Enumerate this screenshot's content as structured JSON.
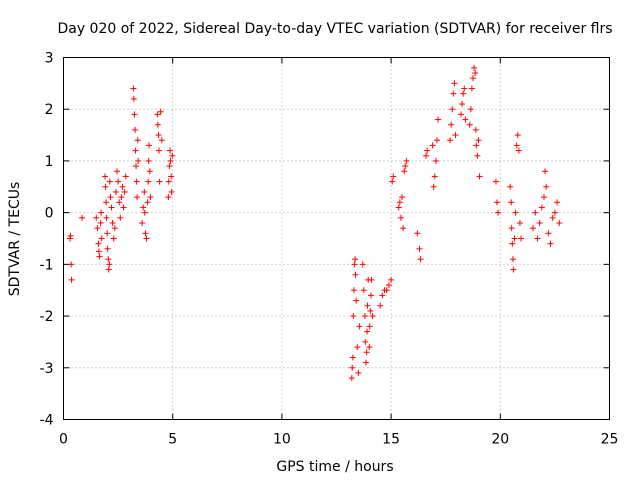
{
  "chart_data": {
    "type": "scatter",
    "title": "Day 020 of 2022, Sidereal Day-to-day VTEC variation (SDTVAR) for receiver flrs",
    "xlabel": "GPS time / hours",
    "ylabel": "SDTVAR / TECUs",
    "xlim": [
      0,
      25
    ],
    "ylim": [
      -4,
      3
    ],
    "xticks": [
      0,
      5,
      10,
      15,
      20,
      25
    ],
    "yticks": [
      -4,
      -3,
      -2,
      -1,
      0,
      1,
      2,
      3
    ],
    "xtick_labels": [
      "0",
      "5",
      "10",
      "15",
      "20",
      "25"
    ],
    "ytick_labels": [
      "-4",
      "-3",
      "-2",
      "-1",
      "0",
      "1",
      "2",
      "3"
    ],
    "grid": true,
    "marker": "+",
    "series": [
      {
        "name": "SDTVAR",
        "color": "#ff0000",
        "points": [
          [
            0.3,
            -0.5
          ],
          [
            0.32,
            -0.45
          ],
          [
            0.35,
            -1.0
          ],
          [
            0.37,
            -1.3
          ],
          [
            0.85,
            -0.1
          ],
          [
            1.5,
            -0.1
          ],
          [
            1.55,
            -0.3
          ],
          [
            1.6,
            -0.6
          ],
          [
            1.62,
            -0.75
          ],
          [
            1.65,
            -0.85
          ],
          [
            1.7,
            -0.2
          ],
          [
            1.72,
            0.0
          ],
          [
            1.75,
            -0.5
          ],
          [
            1.9,
            0.7
          ],
          [
            1.92,
            0.5
          ],
          [
            1.95,
            0.2
          ],
          [
            1.97,
            -0.1
          ],
          [
            2.0,
            -0.4
          ],
          [
            2.02,
            -0.7
          ],
          [
            2.05,
            -0.9
          ],
          [
            2.07,
            -1.1
          ],
          [
            2.1,
            -1.0
          ],
          [
            2.12,
            0.6
          ],
          [
            2.15,
            0.3
          ],
          [
            2.2,
            0.1
          ],
          [
            2.25,
            -0.2
          ],
          [
            2.3,
            -0.5
          ],
          [
            2.35,
            -0.3
          ],
          [
            2.4,
            0.4
          ],
          [
            2.45,
            0.8
          ],
          [
            2.5,
            0.6
          ],
          [
            2.55,
            0.2
          ],
          [
            2.6,
            -0.1
          ],
          [
            2.65,
            0.3
          ],
          [
            2.7,
            0.5
          ],
          [
            2.75,
            0.1
          ],
          [
            2.8,
            0.4
          ],
          [
            2.85,
            0.7
          ],
          [
            3.2,
            2.4
          ],
          [
            3.22,
            2.2
          ],
          [
            3.25,
            1.9
          ],
          [
            3.28,
            1.6
          ],
          [
            3.3,
            1.2
          ],
          [
            3.32,
            0.9
          ],
          [
            3.35,
            0.6
          ],
          [
            3.37,
            0.3
          ],
          [
            3.4,
            1.4
          ],
          [
            3.42,
            1.0
          ],
          [
            3.6,
            -0.2
          ],
          [
            3.65,
            0.1
          ],
          [
            3.7,
            0.4
          ],
          [
            3.72,
            0.0
          ],
          [
            3.75,
            -0.4
          ],
          [
            3.8,
            -0.5
          ],
          [
            3.85,
            0.2
          ],
          [
            3.88,
            0.6
          ],
          [
            3.9,
            1.0
          ],
          [
            3.92,
            1.3
          ],
          [
            3.95,
            0.8
          ],
          [
            3.98,
            0.3
          ],
          [
            4.3,
            1.9
          ],
          [
            4.32,
            1.7
          ],
          [
            4.35,
            1.5
          ],
          [
            4.37,
            1.2
          ],
          [
            4.4,
            0.6
          ],
          [
            4.45,
            1.95
          ],
          [
            4.5,
            1.4
          ],
          [
            4.8,
            0.3
          ],
          [
            4.82,
            0.6
          ],
          [
            4.85,
            0.9
          ],
          [
            4.88,
            1.2
          ],
          [
            4.9,
            1.0
          ],
          [
            4.93,
            0.7
          ],
          [
            4.95,
            0.4
          ],
          [
            4.98,
            1.1
          ],
          [
            13.2,
            -3.2
          ],
          [
            13.22,
            -3.0
          ],
          [
            13.25,
            -2.8
          ],
          [
            13.27,
            -2.0
          ],
          [
            13.3,
            -1.5
          ],
          [
            13.32,
            -1.0
          ],
          [
            13.35,
            -0.9
          ],
          [
            13.37,
            -1.2
          ],
          [
            13.4,
            -1.7
          ],
          [
            13.45,
            -2.6
          ],
          [
            13.5,
            -3.1
          ],
          [
            13.55,
            -2.2
          ],
          [
            13.7,
            -1.0
          ],
          [
            13.75,
            -1.5
          ],
          [
            13.8,
            -2.0
          ],
          [
            13.82,
            -2.5
          ],
          [
            13.85,
            -2.9
          ],
          [
            13.88,
            -2.7
          ],
          [
            13.9,
            -2.3
          ],
          [
            13.92,
            -1.8
          ],
          [
            13.95,
            -1.3
          ],
          [
            14.0,
            -2.6
          ],
          [
            14.02,
            -2.2
          ],
          [
            14.05,
            -1.9
          ],
          [
            14.08,
            -1.6
          ],
          [
            14.1,
            -1.3
          ],
          [
            14.15,
            -2.0
          ],
          [
            14.5,
            -1.8
          ],
          [
            14.6,
            -1.6
          ],
          [
            14.7,
            -1.5
          ],
          [
            14.8,
            -1.5
          ],
          [
            14.9,
            -1.4
          ],
          [
            15.0,
            -1.3
          ],
          [
            15.05,
            0.6
          ],
          [
            15.1,
            0.7
          ],
          [
            15.35,
            0.1
          ],
          [
            15.4,
            0.2
          ],
          [
            15.45,
            -0.1
          ],
          [
            15.5,
            0.3
          ],
          [
            15.55,
            -0.3
          ],
          [
            15.6,
            0.8
          ],
          [
            15.65,
            0.9
          ],
          [
            15.7,
            1.0
          ],
          [
            16.2,
            -0.4
          ],
          [
            16.3,
            -0.7
          ],
          [
            16.35,
            -0.9
          ],
          [
            16.6,
            1.1
          ],
          [
            16.65,
            1.2
          ],
          [
            16.9,
            1.3
          ],
          [
            16.95,
            0.5
          ],
          [
            17.0,
            0.7
          ],
          [
            17.05,
            1.0
          ],
          [
            17.1,
            1.4
          ],
          [
            17.15,
            1.8
          ],
          [
            17.7,
            1.4
          ],
          [
            17.75,
            1.7
          ],
          [
            17.8,
            2.0
          ],
          [
            17.85,
            2.3
          ],
          [
            17.9,
            2.5
          ],
          [
            17.95,
            1.5
          ],
          [
            18.2,
            1.9
          ],
          [
            18.25,
            2.1
          ],
          [
            18.3,
            2.3
          ],
          [
            18.35,
            2.4
          ],
          [
            18.4,
            1.8
          ],
          [
            18.6,
            1.7
          ],
          [
            18.65,
            2.0
          ],
          [
            18.7,
            2.4
          ],
          [
            18.75,
            2.6
          ],
          [
            18.8,
            2.8
          ],
          [
            18.85,
            2.7
          ],
          [
            18.88,
            1.6
          ],
          [
            18.9,
            1.3
          ],
          [
            18.95,
            1.1
          ],
          [
            19.0,
            1.4
          ],
          [
            19.05,
            0.7
          ],
          [
            19.8,
            0.6
          ],
          [
            19.85,
            0.2
          ],
          [
            19.9,
            0.0
          ],
          [
            20.45,
            0.5
          ],
          [
            20.5,
            0.2
          ],
          [
            20.52,
            -0.3
          ],
          [
            20.55,
            -0.6
          ],
          [
            20.58,
            -0.9
          ],
          [
            20.6,
            -1.1
          ],
          [
            20.65,
            -0.5
          ],
          [
            20.7,
            0.0
          ],
          [
            20.75,
            1.3
          ],
          [
            20.8,
            1.5
          ],
          [
            20.85,
            1.2
          ],
          [
            20.9,
            -0.2
          ],
          [
            20.95,
            -0.5
          ],
          [
            21.5,
            -0.3
          ],
          [
            21.6,
            0.0
          ],
          [
            21.7,
            -0.5
          ],
          [
            21.8,
            -0.2
          ],
          [
            21.9,
            0.1
          ],
          [
            22.0,
            0.3
          ],
          [
            22.05,
            0.8
          ],
          [
            22.1,
            0.5
          ],
          [
            22.2,
            -0.4
          ],
          [
            22.3,
            -0.6
          ],
          [
            22.4,
            -0.1
          ],
          [
            22.5,
            0.0
          ],
          [
            22.6,
            0.2
          ],
          [
            22.7,
            -0.2
          ]
        ]
      }
    ]
  }
}
